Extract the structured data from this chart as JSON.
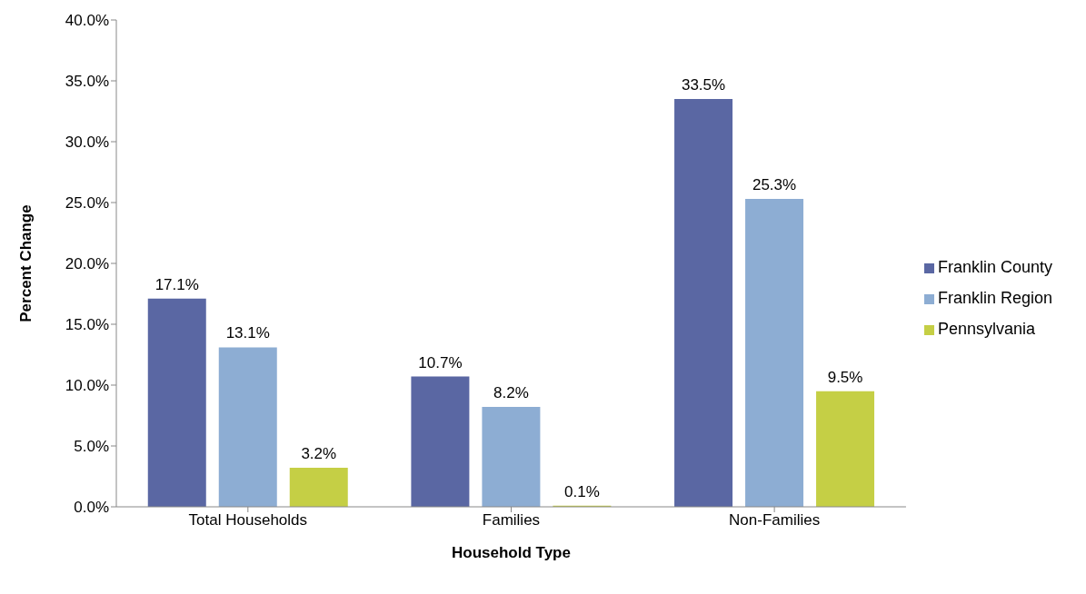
{
  "chart_data": {
    "type": "bar",
    "xlabel": "Household Type",
    "ylabel": "Percent Change",
    "categories": [
      "Total Households",
      "Families",
      "Non-Families"
    ],
    "series": [
      {
        "name": "Franklin County",
        "color": "#5a67a3",
        "values": [
          17.1,
          10.7,
          33.5
        ],
        "value_labels": [
          "17.1%",
          "10.7%",
          "33.5%"
        ]
      },
      {
        "name": "Franklin Region",
        "color": "#8dadd3",
        "values": [
          13.1,
          8.2,
          25.3
        ],
        "value_labels": [
          "13.1%",
          "8.2%",
          "25.3%"
        ]
      },
      {
        "name": "Pennsylvania",
        "color": "#c5cf45",
        "values": [
          3.2,
          0.1,
          9.5
        ],
        "value_labels": [
          "3.2%",
          "0.1%",
          "9.5%"
        ]
      }
    ],
    "ylim": [
      0,
      40
    ],
    "yticks": [
      {
        "value": 0,
        "label": "0.0%"
      },
      {
        "value": 5,
        "label": "5.0%"
      },
      {
        "value": 10,
        "label": "10.0%"
      },
      {
        "value": 15,
        "label": "15.0%"
      },
      {
        "value": 20,
        "label": "20.0%"
      },
      {
        "value": 25,
        "label": "25.0%"
      },
      {
        "value": 30,
        "label": "30.0%"
      },
      {
        "value": 35,
        "label": "35.0%"
      },
      {
        "value": 40,
        "label": "40.0%"
      }
    ],
    "grid": false,
    "legend": "right"
  }
}
